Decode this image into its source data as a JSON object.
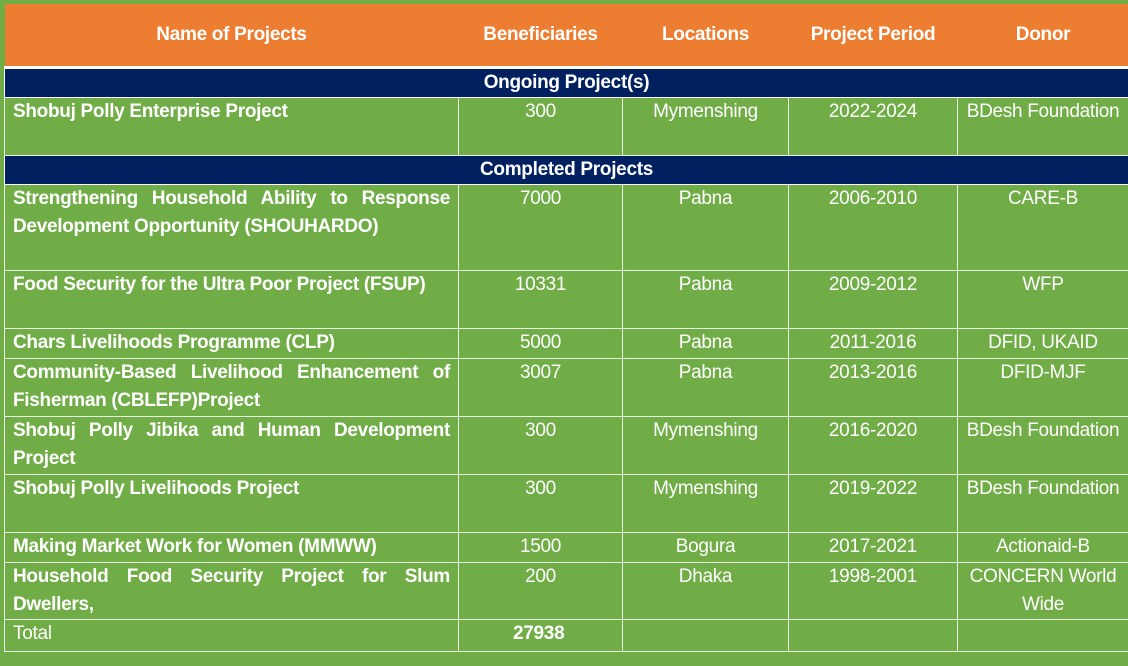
{
  "header": {
    "columns": [
      "Name of Projects",
      "Beneficiaries",
      "Locations",
      "Project Period",
      "Donor"
    ]
  },
  "sections": [
    {
      "title": "Ongoing Project(s)",
      "rows": [
        [
          "Shobuj Polly Enterprise Project",
          "300",
          "Mymenshing",
          "2022-2024",
          "BDesh Foundation"
        ]
      ]
    },
    {
      "title": "Completed Projects",
      "rows": [
        [
          "Strengthening Household Ability to Response Development Opportunity (SHOUHARDO)",
          "7000",
          "Pabna",
          "2006-2010",
          "CARE-B"
        ],
        [
          "Food Security for the Ultra Poor Project (FSUP)",
          "10331",
          "Pabna",
          "2009-2012",
          "WFP"
        ],
        [
          "Chars Livelihoods Programme (CLP)",
          "5000",
          "Pabna",
          "2011-2016",
          "DFID, UKAID"
        ],
        [
          "Community-Based Livelihood Enhancement of Fisherman (CBLEFP)Project",
          "3007",
          "Pabna",
          "2013-2016",
          "DFID-MJF"
        ],
        [
          "Shobuj Polly Jibika and Human Development Project",
          "300",
          "Mymenshing",
          "2016-2020",
          "BDesh Foundation"
        ],
        [
          "Shobuj Polly Livelihoods Project",
          "300",
          "Mymenshing",
          "2019-2022",
          "BDesh Foundation"
        ],
        [
          "Making Market Work for Women (MMWW)",
          "1500",
          "Bogura",
          "2017-2021",
          "Actionaid-B"
        ],
        [
          "Household Food Security Project for Slum Dwellers,",
          "200",
          "Dhaka",
          "1998-2001",
          "CONCERN World Wide"
        ]
      ]
    }
  ],
  "total": {
    "label": "Total",
    "value": "27938"
  }
}
